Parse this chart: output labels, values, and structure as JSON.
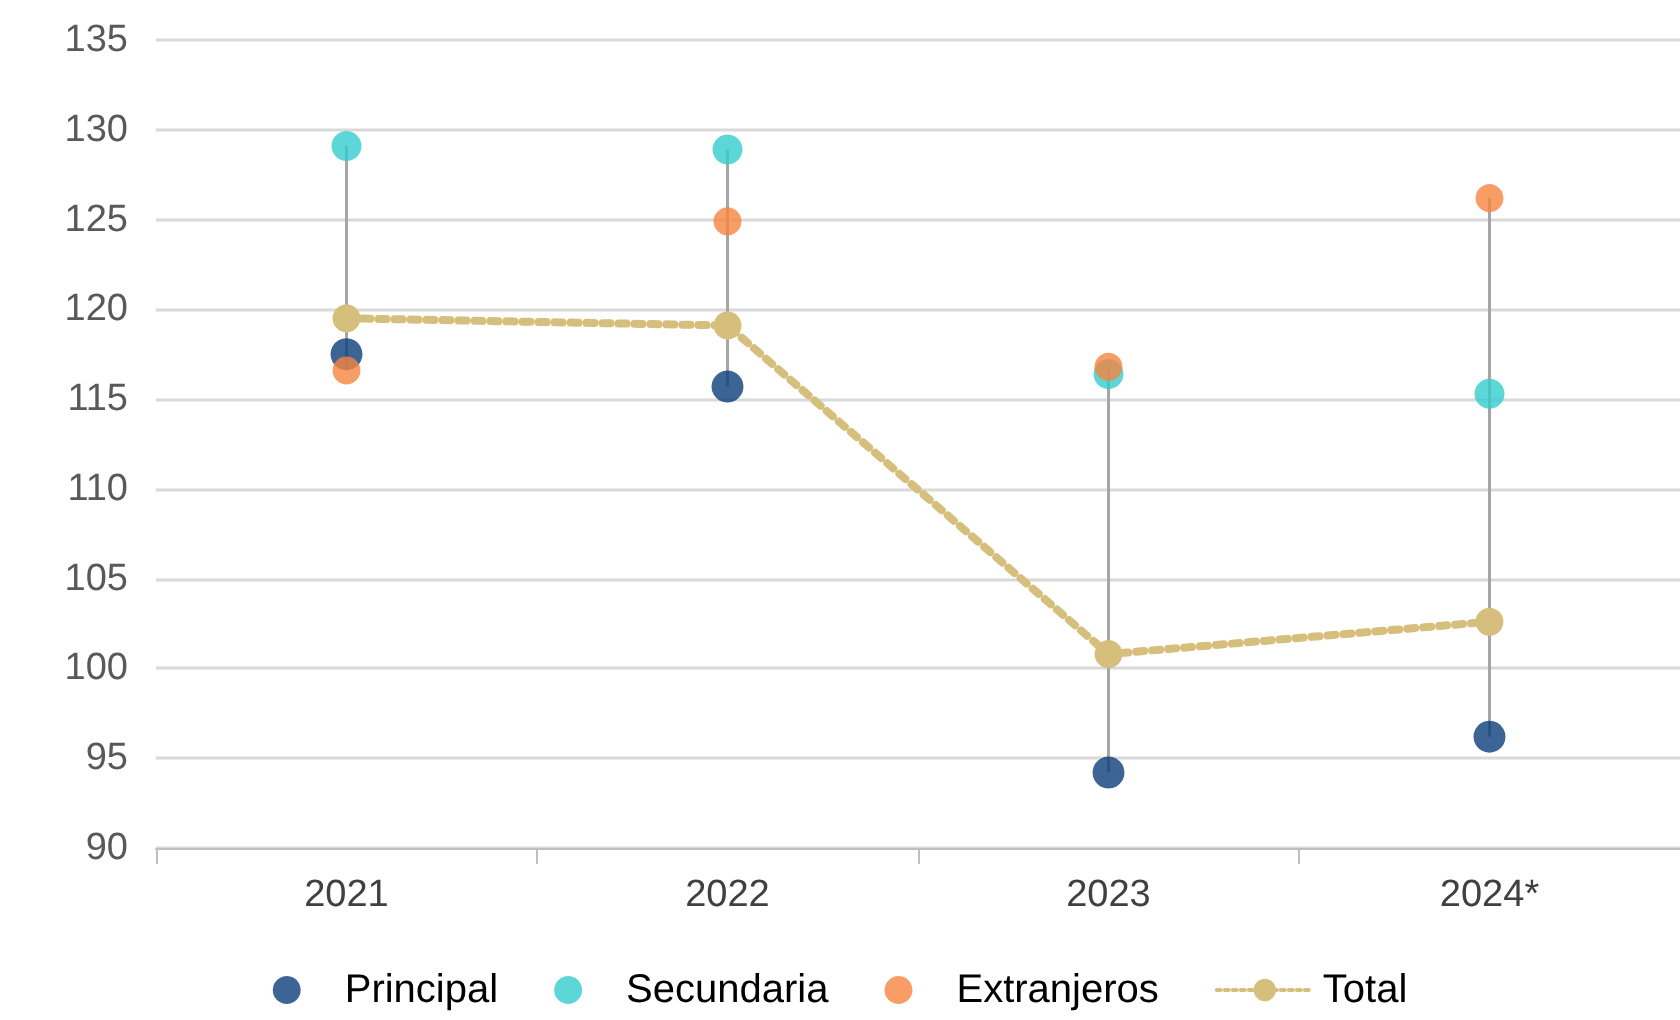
{
  "chart_data": {
    "type": "scatter",
    "categories": [
      "2021",
      "2022",
      "2023",
      "2024*"
    ],
    "series": [
      {
        "name": "Principal",
        "color": "#0b3f7c",
        "values": [
          117.5,
          115.7,
          94.2,
          96.2
        ]
      },
      {
        "name": "Secundaria",
        "color": "#33cccc",
        "values": [
          129.1,
          128.9,
          116.4,
          115.3
        ]
      },
      {
        "name": "Extranjeros",
        "color": "#f5853f",
        "values": [
          116.6,
          124.9,
          116.8,
          126.2
        ]
      },
      {
        "name": "Total",
        "type": "line",
        "color": "#d6bf7c",
        "values": [
          119.5,
          119.1,
          100.8,
          102.6
        ]
      }
    ],
    "ylim": [
      90,
      135
    ],
    "yticks": [
      90,
      95,
      100,
      105,
      110,
      115,
      120,
      125,
      130,
      135
    ],
    "grid": "y",
    "legend": "bottom",
    "marker": "circle",
    "line_style": "dotted"
  }
}
